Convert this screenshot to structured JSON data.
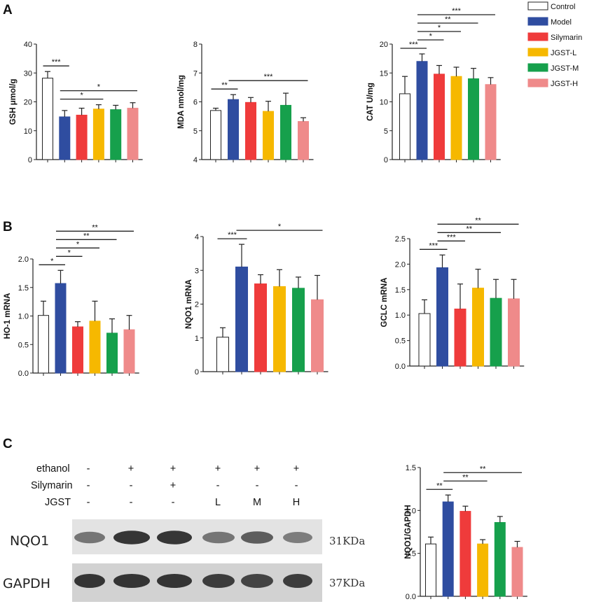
{
  "panel_labels": [
    "A",
    "B",
    "C"
  ],
  "legend": {
    "items": [
      {
        "label": "Control",
        "color": "#ffffff"
      },
      {
        "label": "Model",
        "color": "#2f4da0"
      },
      {
        "label": "Silymarin",
        "color": "#ef3b3b"
      },
      {
        "label": "JGST-L",
        "color": "#f6b800"
      },
      {
        "label": "JGST-M",
        "color": "#16a04c"
      },
      {
        "label": "JGST-H",
        "color": "#ef8a8a"
      }
    ]
  },
  "chart_data": [
    {
      "id": "gsh",
      "type": "bar",
      "ylabel": "GSH μmol/g",
      "ylim": [
        0,
        40
      ],
      "yticks": [
        "0",
        "10",
        "20",
        "30",
        "40"
      ],
      "values": [
        28.2,
        14.8,
        15.4,
        17.5,
        17.3,
        17.8
      ],
      "errors": [
        2.3,
        2.2,
        2.4,
        1.5,
        1.5,
        1.9
      ],
      "significance": [
        {
          "from": 0,
          "to": 1,
          "label": "***"
        },
        {
          "from": 1,
          "to": 3,
          "label": "*"
        },
        {
          "from": 1,
          "to": 5,
          "label": "*"
        }
      ]
    },
    {
      "id": "mda",
      "type": "bar",
      "ylabel": "MDA nmol/mg",
      "ylim": [
        4,
        8
      ],
      "yticks": [
        "4",
        "5",
        "6",
        "7",
        "8"
      ],
      "values": [
        5.7,
        6.08,
        5.98,
        5.67,
        5.88,
        5.32
      ],
      "errors": [
        0.08,
        0.17,
        0.17,
        0.35,
        0.42,
        0.13
      ],
      "significance": [
        {
          "from": 0,
          "to": 1,
          "label": "**"
        },
        {
          "from": 1,
          "to": 5,
          "label": "***"
        }
      ]
    },
    {
      "id": "cat",
      "type": "bar",
      "ylabel": "CAT U/mg",
      "ylim": [
        0,
        20
      ],
      "yticks": [
        "0",
        "5",
        "10",
        "15",
        "20"
      ],
      "values": [
        11.4,
        17.0,
        14.8,
        14.4,
        14.0,
        13.0
      ],
      "errors": [
        3.0,
        1.3,
        1.5,
        1.6,
        1.8,
        1.2
      ],
      "significance": [
        {
          "from": 0,
          "to": 1,
          "label": "***"
        },
        {
          "from": 1,
          "to": 2,
          "label": "*"
        },
        {
          "from": 1,
          "to": 3,
          "label": "*"
        },
        {
          "from": 1,
          "to": 4,
          "label": "**"
        },
        {
          "from": 1,
          "to": 5,
          "label": "***"
        }
      ]
    },
    {
      "id": "ho1",
      "type": "bar",
      "ylabel": "HO-1 mRNA",
      "ylim": [
        0,
        2.0
      ],
      "yticks": [
        "0.0",
        "0.5",
        "1.0",
        "1.5",
        "2.0"
      ],
      "values": [
        1.01,
        1.57,
        0.81,
        0.91,
        0.7,
        0.76
      ],
      "errors": [
        0.25,
        0.23,
        0.09,
        0.35,
        0.25,
        0.25
      ],
      "significance": [
        {
          "from": 0,
          "to": 1,
          "label": "*"
        },
        {
          "from": 1,
          "to": 2,
          "label": "*"
        },
        {
          "from": 1,
          "to": 3,
          "label": "*"
        },
        {
          "from": 1,
          "to": 4,
          "label": "**"
        },
        {
          "from": 1,
          "to": 5,
          "label": "**"
        }
      ]
    },
    {
      "id": "nqo1",
      "type": "bar",
      "ylabel": "NQO1 mRNA",
      "ylim": [
        0,
        4
      ],
      "yticks": [
        "0",
        "1",
        "2",
        "3",
        "4"
      ],
      "values": [
        1.02,
        3.1,
        2.6,
        2.52,
        2.47,
        2.13
      ],
      "errors": [
        0.28,
        0.67,
        0.27,
        0.5,
        0.33,
        0.72
      ],
      "significance": [
        {
          "from": 0,
          "to": 1,
          "label": "***"
        },
        {
          "from": 1,
          "to": 5,
          "label": "*"
        }
      ]
    },
    {
      "id": "gclc",
      "type": "bar",
      "ylabel": "GCLC mRNA",
      "ylim": [
        0,
        2.5
      ],
      "yticks": [
        "0.0",
        "0.5",
        "1.0",
        "1.5",
        "2.0",
        "2.5"
      ],
      "values": [
        1.03,
        1.93,
        1.12,
        1.53,
        1.33,
        1.32
      ],
      "errors": [
        0.27,
        0.25,
        0.49,
        0.37,
        0.37,
        0.38
      ],
      "significance": [
        {
          "from": 0,
          "to": 1,
          "label": "***"
        },
        {
          "from": 1,
          "to": 2,
          "label": "***"
        },
        {
          "from": 1,
          "to": 4,
          "label": "**"
        },
        {
          "from": 1,
          "to": 5,
          "label": "**"
        }
      ]
    },
    {
      "id": "nqo1_gapdh",
      "type": "bar",
      "ylabel": "NQO1/GAPDH",
      "ylim": [
        0,
        1.5
      ],
      "yticks": [
        "0.0",
        "0.5",
        "1.0",
        "1.5"
      ],
      "values": [
        0.61,
        1.1,
        0.99,
        0.61,
        0.86,
        0.57
      ],
      "errors": [
        0.08,
        0.08,
        0.06,
        0.05,
        0.07,
        0.07
      ],
      "significance": [
        {
          "from": 0,
          "to": 1,
          "label": "**"
        },
        {
          "from": 1,
          "to": 3,
          "label": "**"
        },
        {
          "from": 1,
          "to": 5,
          "label": "**"
        }
      ]
    }
  ],
  "western_blot": {
    "rows": [
      {
        "label": "ethanol",
        "values": [
          "-",
          "+",
          "+",
          "+",
          "+",
          "+"
        ]
      },
      {
        "label": "Silymarin",
        "values": [
          "-",
          "-",
          "+",
          "-",
          "-",
          "-"
        ]
      },
      {
        "label": "JGST",
        "values": [
          "-",
          "-",
          "-",
          "L",
          "M",
          "H"
        ]
      }
    ],
    "bands": [
      {
        "protein": "NQO1",
        "size": "31KDa",
        "intensity": [
          0.55,
          0.95,
          0.95,
          0.55,
          0.7,
          0.5
        ]
      },
      {
        "protein": "GAPDH",
        "size": "37KDa",
        "intensity": [
          0.95,
          0.95,
          0.95,
          0.9,
          0.85,
          0.9
        ]
      }
    ]
  }
}
